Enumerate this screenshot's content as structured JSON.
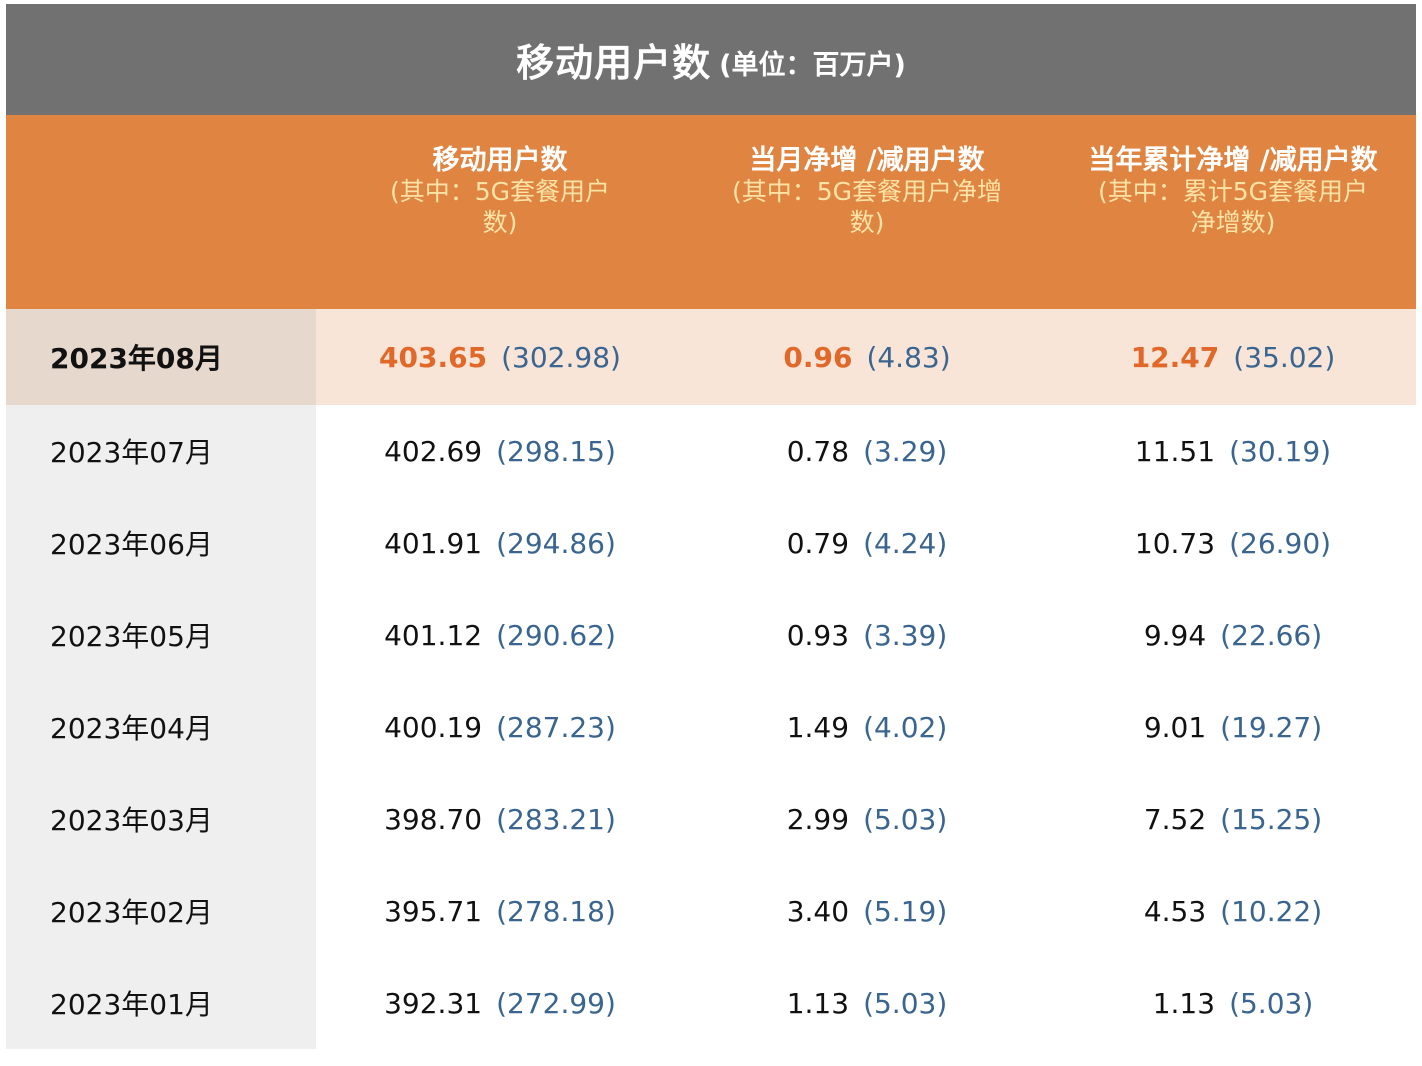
{
  "title": {
    "main": "移动用户数",
    "unit": "(单位：百万户)"
  },
  "columns": [
    {
      "main": "",
      "sub": ""
    },
    {
      "main": "移动用户数",
      "sub": "(其中：5G套餐用户数)"
    },
    {
      "main": "当月净增 /减用户数",
      "sub": "(其中：5G套餐用户净增数)"
    },
    {
      "main": "当年累计净增 /减用户数",
      "sub": "(其中：累计5G套餐用户净增数)"
    }
  ],
  "rows": [
    {
      "date": "2023年08月",
      "users": "403.65",
      "users_5g": "(302.98)",
      "monthly": "0.96",
      "monthly_5g": "(4.83)",
      "cumulative": "12.47",
      "cumulative_5g": "(35.02)"
    },
    {
      "date": "2023年07月",
      "users": "402.69",
      "users_5g": "(298.15)",
      "monthly": "0.78",
      "monthly_5g": "(3.29)",
      "cumulative": "11.51",
      "cumulative_5g": "(30.19)"
    },
    {
      "date": "2023年06月",
      "users": "401.91",
      "users_5g": "(294.86)",
      "monthly": "0.79",
      "monthly_5g": "(4.24)",
      "cumulative": "10.73",
      "cumulative_5g": "(26.90)"
    },
    {
      "date": "2023年05月",
      "users": "401.12",
      "users_5g": "(290.62)",
      "monthly": "0.93",
      "monthly_5g": "(3.39)",
      "cumulative": "9.94",
      "cumulative_5g": "(22.66)"
    },
    {
      "date": "2023年04月",
      "users": "400.19",
      "users_5g": "(287.23)",
      "monthly": "1.49",
      "monthly_5g": "(4.02)",
      "cumulative": "9.01",
      "cumulative_5g": "(19.27)"
    },
    {
      "date": "2023年03月",
      "users": "398.70",
      "users_5g": "(283.21)",
      "monthly": "2.99",
      "monthly_5g": "(5.03)",
      "cumulative": "7.52",
      "cumulative_5g": "(15.25)"
    },
    {
      "date": "2023年02月",
      "users": "395.71",
      "users_5g": "(278.18)",
      "monthly": "3.40",
      "monthly_5g": "(5.19)",
      "cumulative": "4.53",
      "cumulative_5g": "(10.22)"
    },
    {
      "date": "2023年01月",
      "users": "392.31",
      "users_5g": "(272.99)",
      "monthly": "1.13",
      "monthly_5g": "(5.03)",
      "cumulative": "1.13",
      "cumulative_5g": "(5.03)"
    }
  ],
  "colors": {
    "title_bg": "#717171",
    "header_bg": "#e08441",
    "header_sub_text": "#fbe3a6",
    "highlight_row_bg": "#f8e5d8",
    "highlight_value": "#e0692a",
    "sub_value": "#3a6590",
    "date_col_bg": "#efefef"
  }
}
